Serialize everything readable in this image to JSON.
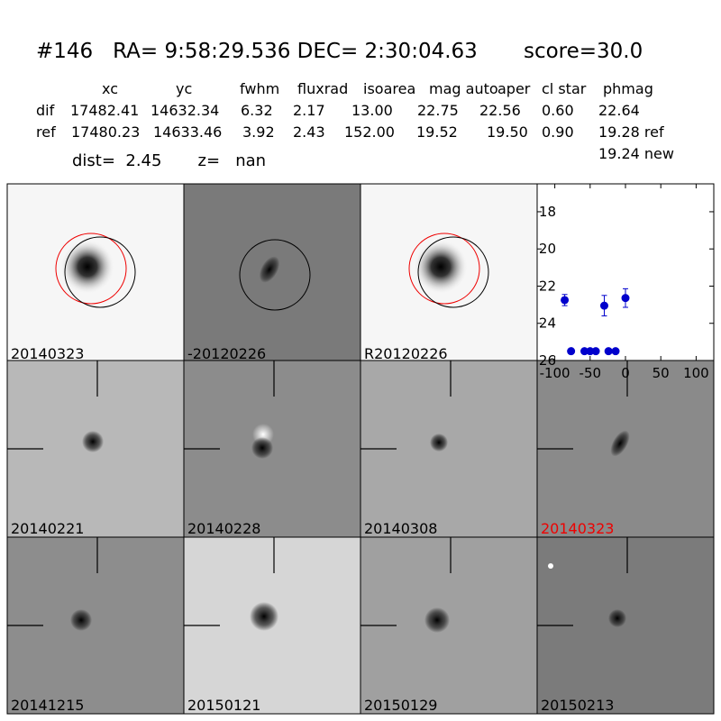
{
  "header": {
    "title": "#146   RA= 9:58:29.536 DEC= 2:30:04.63       score=30.0",
    "dist_line": "dist=  2.45       z=   nan"
  },
  "table": {
    "columns": [
      "xc",
      "yc",
      "fwhm",
      "fluxrad",
      "isoarea",
      "mag auto",
      "aper",
      "cl star",
      "phmag"
    ],
    "rows": [
      [
        "dif",
        "17482.41",
        "14632.34",
        "6.32",
        "2.17",
        "13.00",
        "22.75",
        "22.56",
        "0.60",
        "22.64"
      ],
      [
        "ref",
        "17480.23",
        "14633.46",
        "3.92",
        "2.43",
        "152.00",
        "19.52",
        "19.50",
        "0.90",
        "19.28 ref"
      ]
    ],
    "extra": "19.24 new"
  },
  "panels": [
    {
      "caption": "20140323"
    },
    {
      "caption": "-20120226"
    },
    {
      "caption": "R20120226"
    },
    {
      "caption": "20140221"
    },
    {
      "caption": "20140228"
    },
    {
      "caption": "20140308"
    },
    {
      "caption": "20140323"
    },
    {
      "caption": "20141215"
    },
    {
      "caption": "20150121"
    },
    {
      "caption": "20150129"
    },
    {
      "caption": "20150213"
    }
  ],
  "chart_data": {
    "type": "scatter",
    "series": [
      {
        "color": "#0000cc",
        "x": [
          -86,
          -77,
          -58,
          -50,
          -42,
          -30,
          -24,
          -14,
          0
        ],
        "values": [
          22.75,
          25.5,
          25.5,
          25.5,
          25.5,
          23.05,
          25.5,
          25.5,
          22.64
        ],
        "errors": [
          0.3,
          null,
          null,
          null,
          null,
          0.55,
          null,
          null,
          0.5
        ]
      }
    ],
    "xlim": [
      -125,
      125
    ],
    "ylim": [
      26,
      16.5
    ],
    "xticks": [
      -100,
      -50,
      0,
      50,
      100
    ],
    "yticks": [
      18,
      20,
      22,
      24,
      26
    ]
  }
}
